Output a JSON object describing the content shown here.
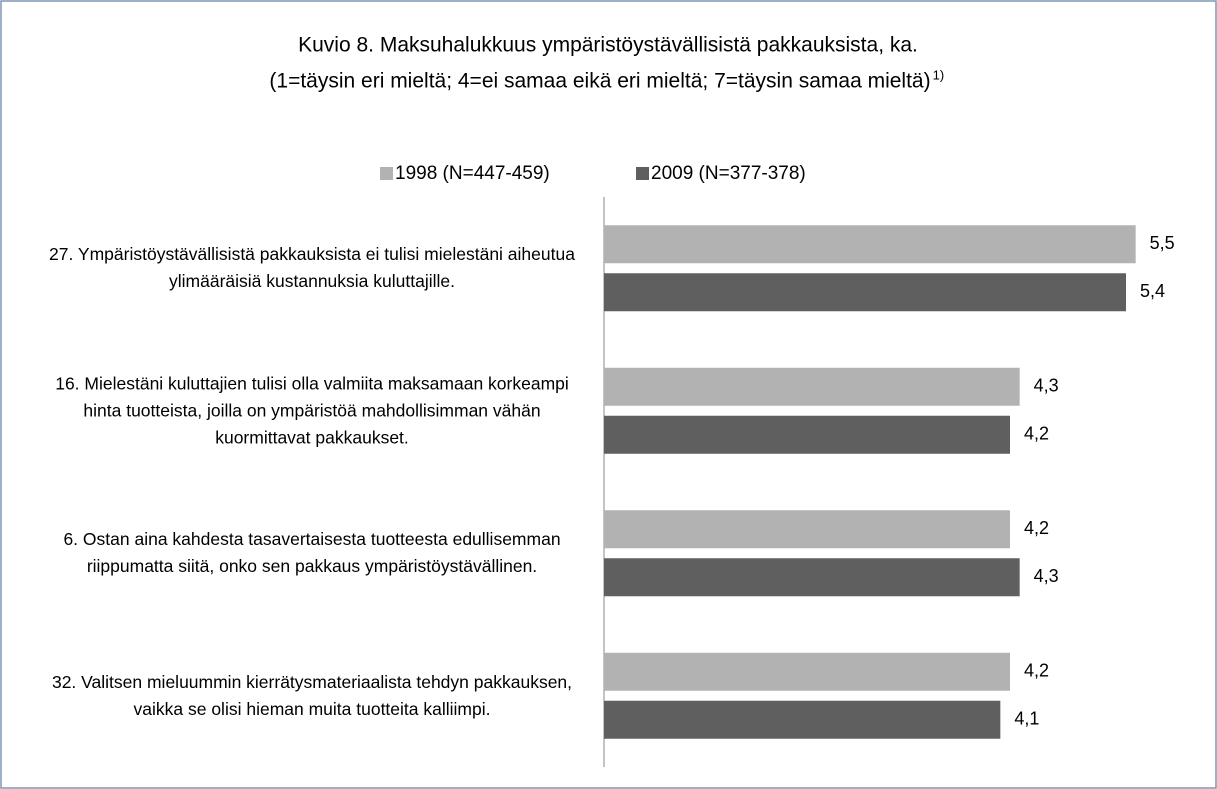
{
  "chart_data": {
    "type": "barh",
    "title": "Kuvio 8. Maksuhalukkuus ympäristöystävällisistä pakkauksista, ka.",
    "subtitle": "(1=täysin eri mieltä; 4=ei samaa eikä eri mieltä; 7=täysin samaa mieltä)",
    "subtitle_superscript": "1)",
    "categories": [
      "27. Ympäristöystävällisistä pakkauksista ei tulisi mielestäni aiheutua ylimääräisiä kustannuksia kuluttajille.",
      "16. Mielestäni kuluttajien tulisi olla valmiita maksamaan korkeampi hinta tuotteista, joilla on ympäristöä mahdollisimman vähän kuormittavat pakkaukset.",
      "6. Ostan aina kahdesta tasavertaisesta tuotteesta edullisemman riippumatta siitä, onko sen pakkaus ympäristöystävällinen.",
      "32. Valitsen mieluummin kierrätysmateriaalista tehdyn pakkauksen, vaikka se olisi hieman muita tuotteita kalliimpi."
    ],
    "series": [
      {
        "name": "1998 (N=447-459)",
        "color": "#b2b2b2",
        "values": [
          5.5,
          4.3,
          4.2,
          4.2
        ],
        "value_labels": [
          "5,5",
          "4,3",
          "4,2",
          "4,2"
        ]
      },
      {
        "name": "2009 (N=377-378)",
        "color": "#5f5f5f",
        "values": [
          5.4,
          4.2,
          4.3,
          4.1
        ],
        "value_labels": [
          "5,4",
          "4,2",
          "4,3",
          "4,1"
        ]
      }
    ],
    "xlim": [
      0,
      6
    ],
    "legend": "top",
    "grid": false
  }
}
